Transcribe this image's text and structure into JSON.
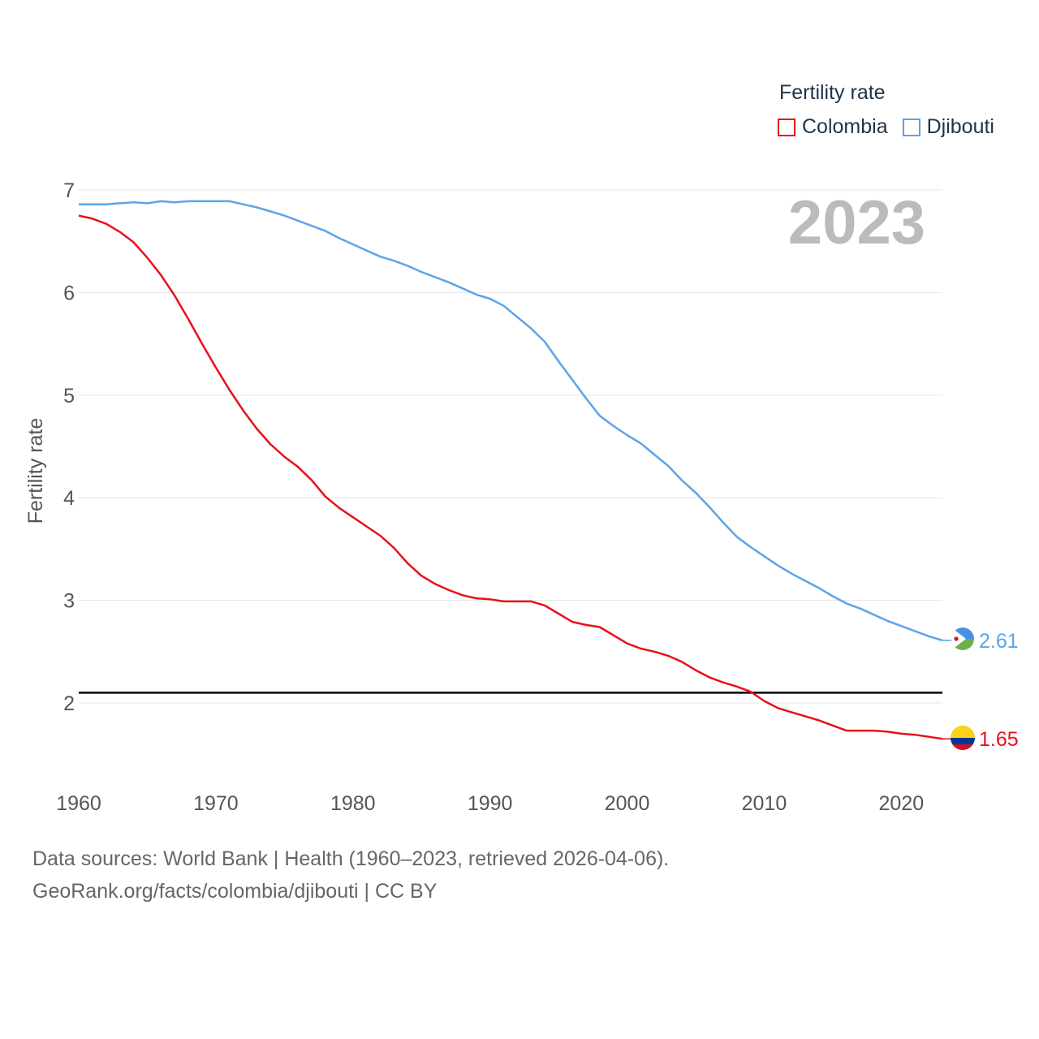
{
  "legend": {
    "title": "Fertility rate",
    "items": [
      {
        "label": "Colombia",
        "color": "#e8101a"
      },
      {
        "label": "Djibouti",
        "color": "#5ba4e8"
      }
    ]
  },
  "footer": {
    "line1": "Data sources: World Bank | Health (1960–2023, retrieved 2026-04-06).",
    "line2": "GeoRank.org/facts/colombia/djibouti | CC BY"
  },
  "chart_data": {
    "type": "line",
    "title": "2023",
    "xlabel": "",
    "ylabel": "Fertility rate",
    "xlim": [
      1960,
      2023
    ],
    "ylim": [
      1.4,
      7.1
    ],
    "xticks": [
      1960,
      1970,
      1980,
      1990,
      2000,
      2010,
      2020
    ],
    "yticks": [
      2,
      3,
      4,
      5,
      6,
      7
    ],
    "grid": true,
    "reference_line": {
      "y": 2.1,
      "color": "#000000"
    },
    "x": [
      1960,
      1961,
      1962,
      1963,
      1964,
      1965,
      1966,
      1967,
      1968,
      1969,
      1970,
      1971,
      1972,
      1973,
      1974,
      1975,
      1976,
      1977,
      1978,
      1979,
      1980,
      1981,
      1982,
      1983,
      1984,
      1985,
      1986,
      1987,
      1988,
      1989,
      1990,
      1991,
      1992,
      1993,
      1994,
      1995,
      1996,
      1997,
      1998,
      1999,
      2000,
      2001,
      2002,
      2003,
      2004,
      2005,
      2006,
      2007,
      2008,
      2009,
      2010,
      2011,
      2012,
      2013,
      2014,
      2015,
      2016,
      2017,
      2018,
      2019,
      2020,
      2021,
      2022,
      2023
    ],
    "series": [
      {
        "name": "Colombia",
        "color": "#e8101a",
        "end_label": "1.65",
        "values": [
          6.75,
          6.72,
          6.67,
          6.59,
          6.49,
          6.34,
          6.17,
          5.97,
          5.74,
          5.5,
          5.27,
          5.05,
          4.85,
          4.67,
          4.52,
          4.4,
          4.3,
          4.17,
          4.01,
          3.9,
          3.81,
          3.72,
          3.63,
          3.51,
          3.36,
          3.24,
          3.16,
          3.1,
          3.05,
          3.02,
          3.01,
          2.99,
          2.99,
          2.99,
          2.95,
          2.87,
          2.79,
          2.76,
          2.74,
          2.66,
          2.58,
          2.53,
          2.5,
          2.46,
          2.4,
          2.32,
          2.25,
          2.2,
          2.16,
          2.11,
          2.02,
          1.95,
          1.91,
          1.87,
          1.83,
          1.78,
          1.73,
          1.73,
          1.73,
          1.72,
          1.7,
          1.69,
          1.67,
          1.65
        ]
      },
      {
        "name": "Djibouti",
        "color": "#5ba4e8",
        "end_label": "2.61",
        "values": [
          6.86,
          6.86,
          6.86,
          6.87,
          6.88,
          6.87,
          6.89,
          6.88,
          6.89,
          6.89,
          6.89,
          6.89,
          6.86,
          6.83,
          6.79,
          6.75,
          6.7,
          6.65,
          6.6,
          6.53,
          6.47,
          6.41,
          6.35,
          6.31,
          6.26,
          6.2,
          6.15,
          6.1,
          6.04,
          5.98,
          5.94,
          5.87,
          5.76,
          5.65,
          5.52,
          5.33,
          5.15,
          4.97,
          4.8,
          4.7,
          4.61,
          4.53,
          4.42,
          4.31,
          4.17,
          4.05,
          3.91,
          3.76,
          3.62,
          3.52,
          3.43,
          3.34,
          3.26,
          3.19,
          3.12,
          3.04,
          2.97,
          2.92,
          2.86,
          2.8,
          2.75,
          2.7,
          2.65,
          2.61
        ]
      }
    ]
  }
}
